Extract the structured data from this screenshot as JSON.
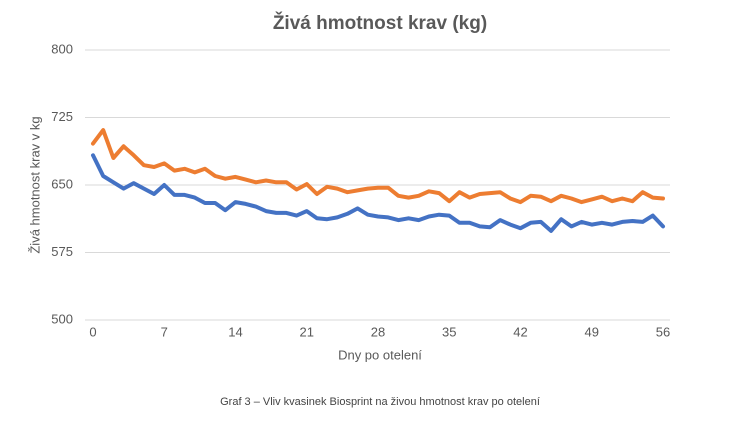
{
  "chart_data": {
    "type": "line",
    "title": "Živá hmotnost krav (kg)",
    "xlabel": "Dny po otelení",
    "ylabel": "Živá hmotnost krav v kg",
    "caption": "Graf 3 – Vliv kvasinek Biosprint na živou hmotnost krav po otelení",
    "x": [
      0,
      1,
      2,
      3,
      4,
      5,
      6,
      7,
      8,
      9,
      10,
      11,
      12,
      13,
      14,
      15,
      16,
      17,
      18,
      19,
      20,
      21,
      22,
      23,
      24,
      25,
      26,
      27,
      28,
      29,
      30,
      31,
      32,
      33,
      34,
      35,
      36,
      37,
      38,
      39,
      40,
      41,
      42,
      43,
      44,
      45,
      46,
      47,
      48,
      49,
      50,
      51,
      52,
      53,
      54,
      55,
      56
    ],
    "series": [
      {
        "color": "#4472c4",
        "values": [
          683,
          660,
          653,
          646,
          652,
          646,
          640,
          650,
          639,
          639,
          636,
          630,
          630,
          622,
          631,
          629,
          626,
          621,
          619,
          619,
          616,
          621,
          613,
          612,
          614,
          618,
          624,
          617,
          615,
          614,
          611,
          613,
          611,
          615,
          617,
          616,
          608,
          608,
          604,
          603,
          611,
          606,
          602,
          608,
          609,
          599,
          612,
          604,
          609,
          606,
          608,
          606,
          609,
          610,
          609,
          616,
          604
        ]
      },
      {
        "color": "#ed7d31",
        "values": [
          696,
          711,
          680,
          693,
          683,
          672,
          670,
          674,
          666,
          668,
          664,
          668,
          660,
          657,
          659,
          656,
          653,
          655,
          653,
          653,
          645,
          651,
          640,
          648,
          646,
          642,
          644,
          646,
          647,
          647,
          638,
          636,
          638,
          643,
          641,
          632,
          642,
          636,
          640,
          641,
          642,
          635,
          631,
          638,
          637,
          632,
          638,
          635,
          631,
          634,
          637,
          632,
          635,
          632,
          642,
          636,
          635
        ]
      }
    ],
    "xlim": [
      0,
      56
    ],
    "xticks": [
      0,
      7,
      14,
      21,
      28,
      35,
      42,
      49,
      56
    ],
    "ylim": [
      500,
      800
    ],
    "yticks": [
      500,
      575,
      650,
      725,
      800
    ],
    "grid": true
  }
}
